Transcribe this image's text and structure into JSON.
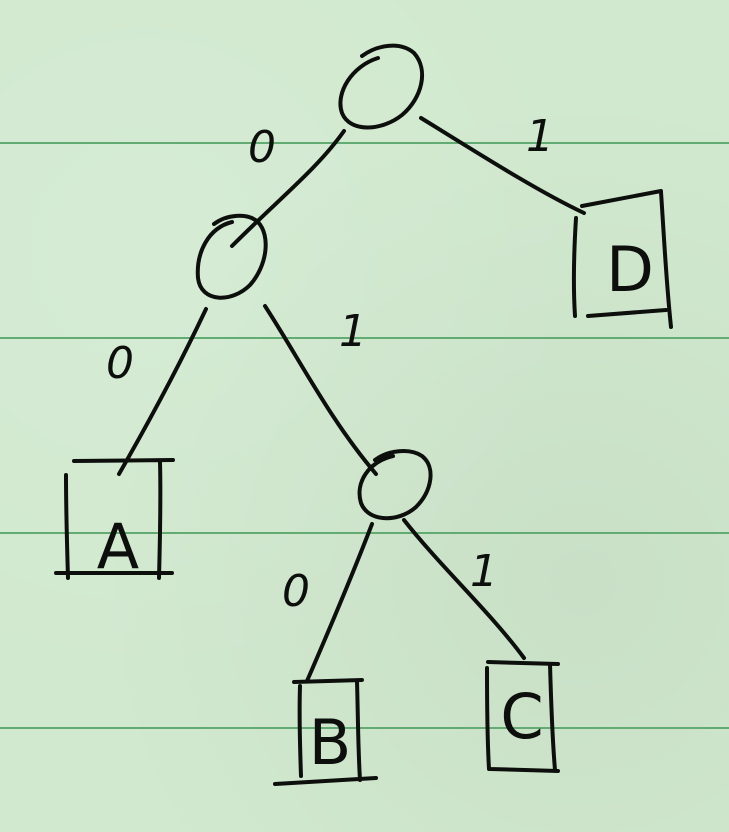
{
  "tree": {
    "root": {
      "left_edge_label": "0",
      "right_edge_label": "1"
    },
    "internal_left": {
      "left_edge_label": "0",
      "right_edge_label": "1"
    },
    "internal_bottom": {
      "left_edge_label": "0",
      "right_edge_label": "1"
    },
    "leaves": {
      "a": "A",
      "b": "B",
      "c": "C",
      "d": "D"
    }
  },
  "colors": {
    "paper": "#d1e9cf",
    "ruled_line": "#62ac74",
    "ink": "#0d0f0d"
  }
}
